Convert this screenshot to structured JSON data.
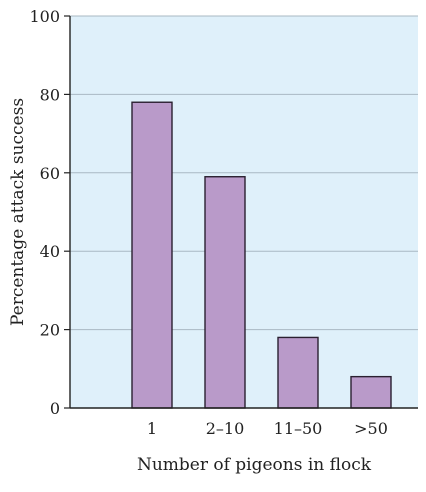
{
  "chart_data": {
    "type": "bar",
    "title": "",
    "xlabel": "Number of pigeons in flock",
    "ylabel": "Percentage attack success",
    "categories": [
      "1",
      "2–10",
      "11–50",
      ">50"
    ],
    "values": [
      78,
      59,
      18,
      8
    ],
    "ylim": [
      0,
      100
    ],
    "yticks": [
      0,
      20,
      40,
      60,
      80,
      100
    ],
    "grid": true,
    "legend": "none",
    "colors": {
      "plot_background": "#dff0fa",
      "bar_fill": "#b99ac9",
      "bar_stroke": "#2a2030",
      "gridline": "#a9b8c3",
      "axis": "#222222"
    }
  }
}
